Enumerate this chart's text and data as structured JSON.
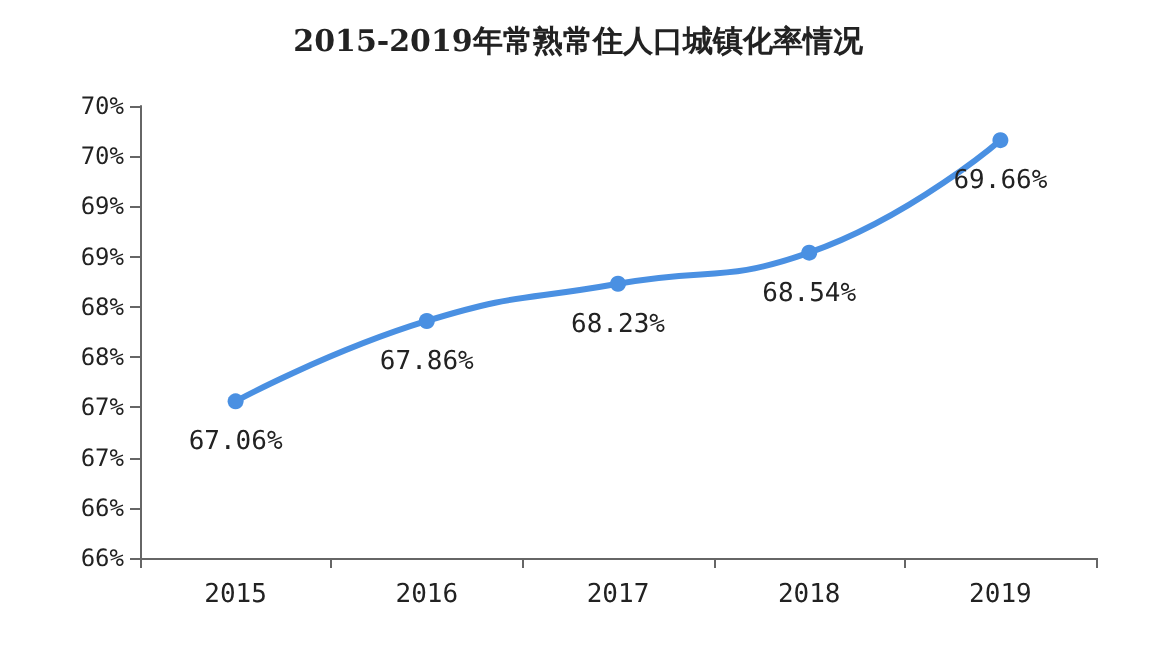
{
  "chart_data": {
    "type": "line",
    "title": "2015-2019年常熟常住人口城镇化率情况",
    "categories": [
      "2015",
      "2016",
      "2017",
      "2018",
      "2019"
    ],
    "series": [
      {
        "color": "#4a90e2",
        "values": [
          67.06,
          67.86,
          68.23,
          68.54,
          69.66
        ]
      }
    ],
    "value_labels": [
      "67.06%",
      "67.86%",
      "68.23%",
      "68.54%",
      "69.66%"
    ],
    "ylim": [
      65.5,
      70
    ],
    "yticks": [
      {
        "value": 65.5,
        "label": "66%"
      },
      {
        "value": 66,
        "label": "66%"
      },
      {
        "value": 66.5,
        "label": "67%"
      },
      {
        "value": 67,
        "label": "67%"
      },
      {
        "value": 67.5,
        "label": "68%"
      },
      {
        "value": 68,
        "label": "68%"
      },
      {
        "value": 68.5,
        "label": "69%"
      },
      {
        "value": 69,
        "label": "69%"
      },
      {
        "value": 69.5,
        "label": "70%"
      },
      {
        "value": 70,
        "label": "70%"
      }
    ],
    "grid": false,
    "marker": "circle",
    "line_style": "solid"
  }
}
